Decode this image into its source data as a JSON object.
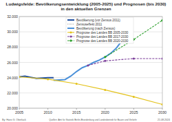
{
  "chart_data": {
    "type": "line",
    "title": "Ludwigsfelde: Bevölkerungsentwicklung (2005-2025) und Prognosen (bis 2030) in den aktuellen Grenzen",
    "annotations": [
      "By: Hans G. Oberlack",
      "Quellen: Amt für Statistik Berlin-Brandenburg und Landesbetrieb für Bauen und Verkehr",
      "21.08.2024"
    ],
    "xlim": [
      2005,
      2030
    ],
    "xticks": [
      2005,
      2010,
      2015,
      2020,
      2025,
      2030
    ],
    "ylim": [
      20000,
      32000
    ],
    "yticks": [
      {
        "value": 20000,
        "label": "20.000"
      },
      {
        "value": 22000,
        "label": "22.000"
      },
      {
        "value": 24000,
        "label": "24.000"
      },
      {
        "value": 26000,
        "label": "26.000"
      },
      {
        "value": 28000,
        "label": "28.000"
      },
      {
        "value": 30000,
        "label": "30.000"
      },
      {
        "value": 32000,
        "label": "32.000"
      }
    ],
    "grid": true,
    "legend": "upper left",
    "series": [
      {
        "name": "Bevölkerung (vor Zensus 2011)",
        "color": "#1f4e9e",
        "line_style": "solid",
        "marker": "none",
        "x": [
          2005,
          2006,
          2007,
          2008,
          2009,
          2010,
          2011
        ],
        "values": [
          24100,
          24200,
          24050,
          23900,
          23950,
          24000,
          24000
        ]
      },
      {
        "name": "Zensuseffekt 2011",
        "color": "#9a9a9a",
        "line_style": "dotted",
        "marker": "none",
        "x": [
          2011,
          2011
        ],
        "values": [
          24000,
          23650
        ]
      },
      {
        "name": "Bevölkerung (nach Zensus)",
        "color": "#4a90d9",
        "line_style": "solid",
        "marker": "none",
        "x": [
          2011,
          2012,
          2013,
          2014,
          2015,
          2016,
          2017,
          2018,
          2019,
          2020,
          2021,
          2022,
          2023
        ],
        "values": [
          23650,
          23700,
          23750,
          24200,
          24800,
          25300,
          25600,
          26000,
          26300,
          26700,
          27200,
          27900,
          28900
        ]
      },
      {
        "name": "Prognose des Landes BB 2005-2030",
        "color": "#e3c21a",
        "line_style": "solid",
        "marker": "circle",
        "x": [
          2005,
          2010,
          2015,
          2020,
          2025,
          2030
        ],
        "values": [
          24100,
          23800,
          23200,
          22400,
          21500,
          20500
        ]
      },
      {
        "name": "Prognose des Landes BB 2017-2030",
        "color": "#7a3d9a",
        "line_style": "dashed",
        "marker": "circle",
        "x": [
          2017,
          2020,
          2025,
          2030
        ],
        "values": [
          25600,
          26200,
          26500,
          26500
        ]
      },
      {
        "name": "Prognose des Landes BB 2020-2030",
        "color": "#2ca02c",
        "line_style": "dashed",
        "marker": "diamond",
        "x": [
          2020,
          2025,
          2030
        ],
        "values": [
          26700,
          29000,
          31500
        ]
      }
    ]
  }
}
